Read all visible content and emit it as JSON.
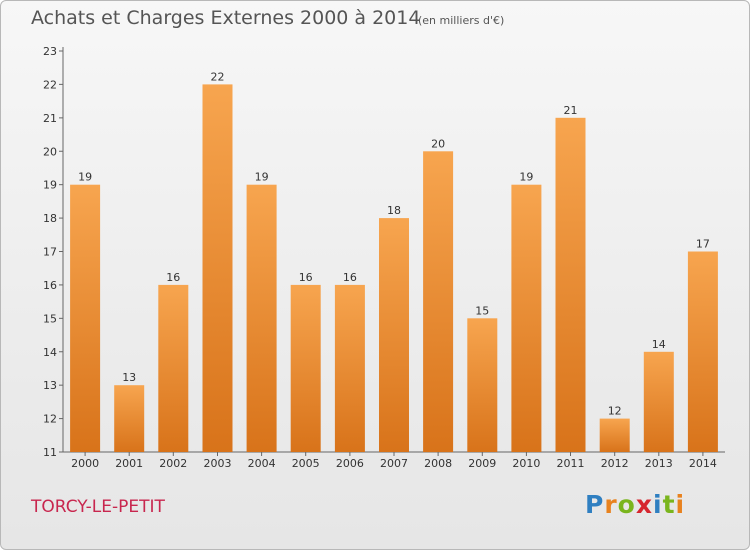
{
  "header": {
    "title": "Achats et Charges Externes 2000 à 2014",
    "subtitle": "(en milliers d'€)"
  },
  "footer": {
    "place": "TORCY-LE-PETIT",
    "logo": [
      "P",
      "r",
      "o",
      "x",
      "i",
      "t",
      "i"
    ],
    "logo_colors": [
      "#2f7fc1",
      "#e8821e",
      "#7ab51d",
      "#d6262e",
      "#2f7fc1",
      "#7ab51d",
      "#e8821e"
    ]
  },
  "colors": {
    "bar_top": "#f7a54f",
    "bar_bottom": "#d8731a",
    "axis": "#666666"
  },
  "chart_data": {
    "type": "bar",
    "title": "Achats et Charges Externes 2000 à 2014",
    "subtitle": "(en milliers d'€)",
    "categories": [
      "2000",
      "2001",
      "2002",
      "2003",
      "2004",
      "2005",
      "2006",
      "2007",
      "2008",
      "2009",
      "2010",
      "2011",
      "2012",
      "2013",
      "2014"
    ],
    "values": [
      19,
      13,
      16,
      22,
      19,
      16,
      16,
      18,
      20,
      15,
      19,
      21,
      12,
      14,
      17
    ],
    "data_labels": [
      "19",
      "13",
      "16",
      "22",
      "19",
      "16",
      "16",
      "18",
      "20",
      "15",
      "19",
      "21",
      "12",
      "14",
      "17"
    ],
    "y_ticks": [
      "11",
      "12",
      "13",
      "14",
      "15",
      "16",
      "17",
      "18",
      "19",
      "20",
      "21",
      "22",
      "23"
    ],
    "ylim": [
      11,
      23
    ],
    "xlabel": "",
    "ylabel": "",
    "grid": false,
    "legend": "none"
  }
}
